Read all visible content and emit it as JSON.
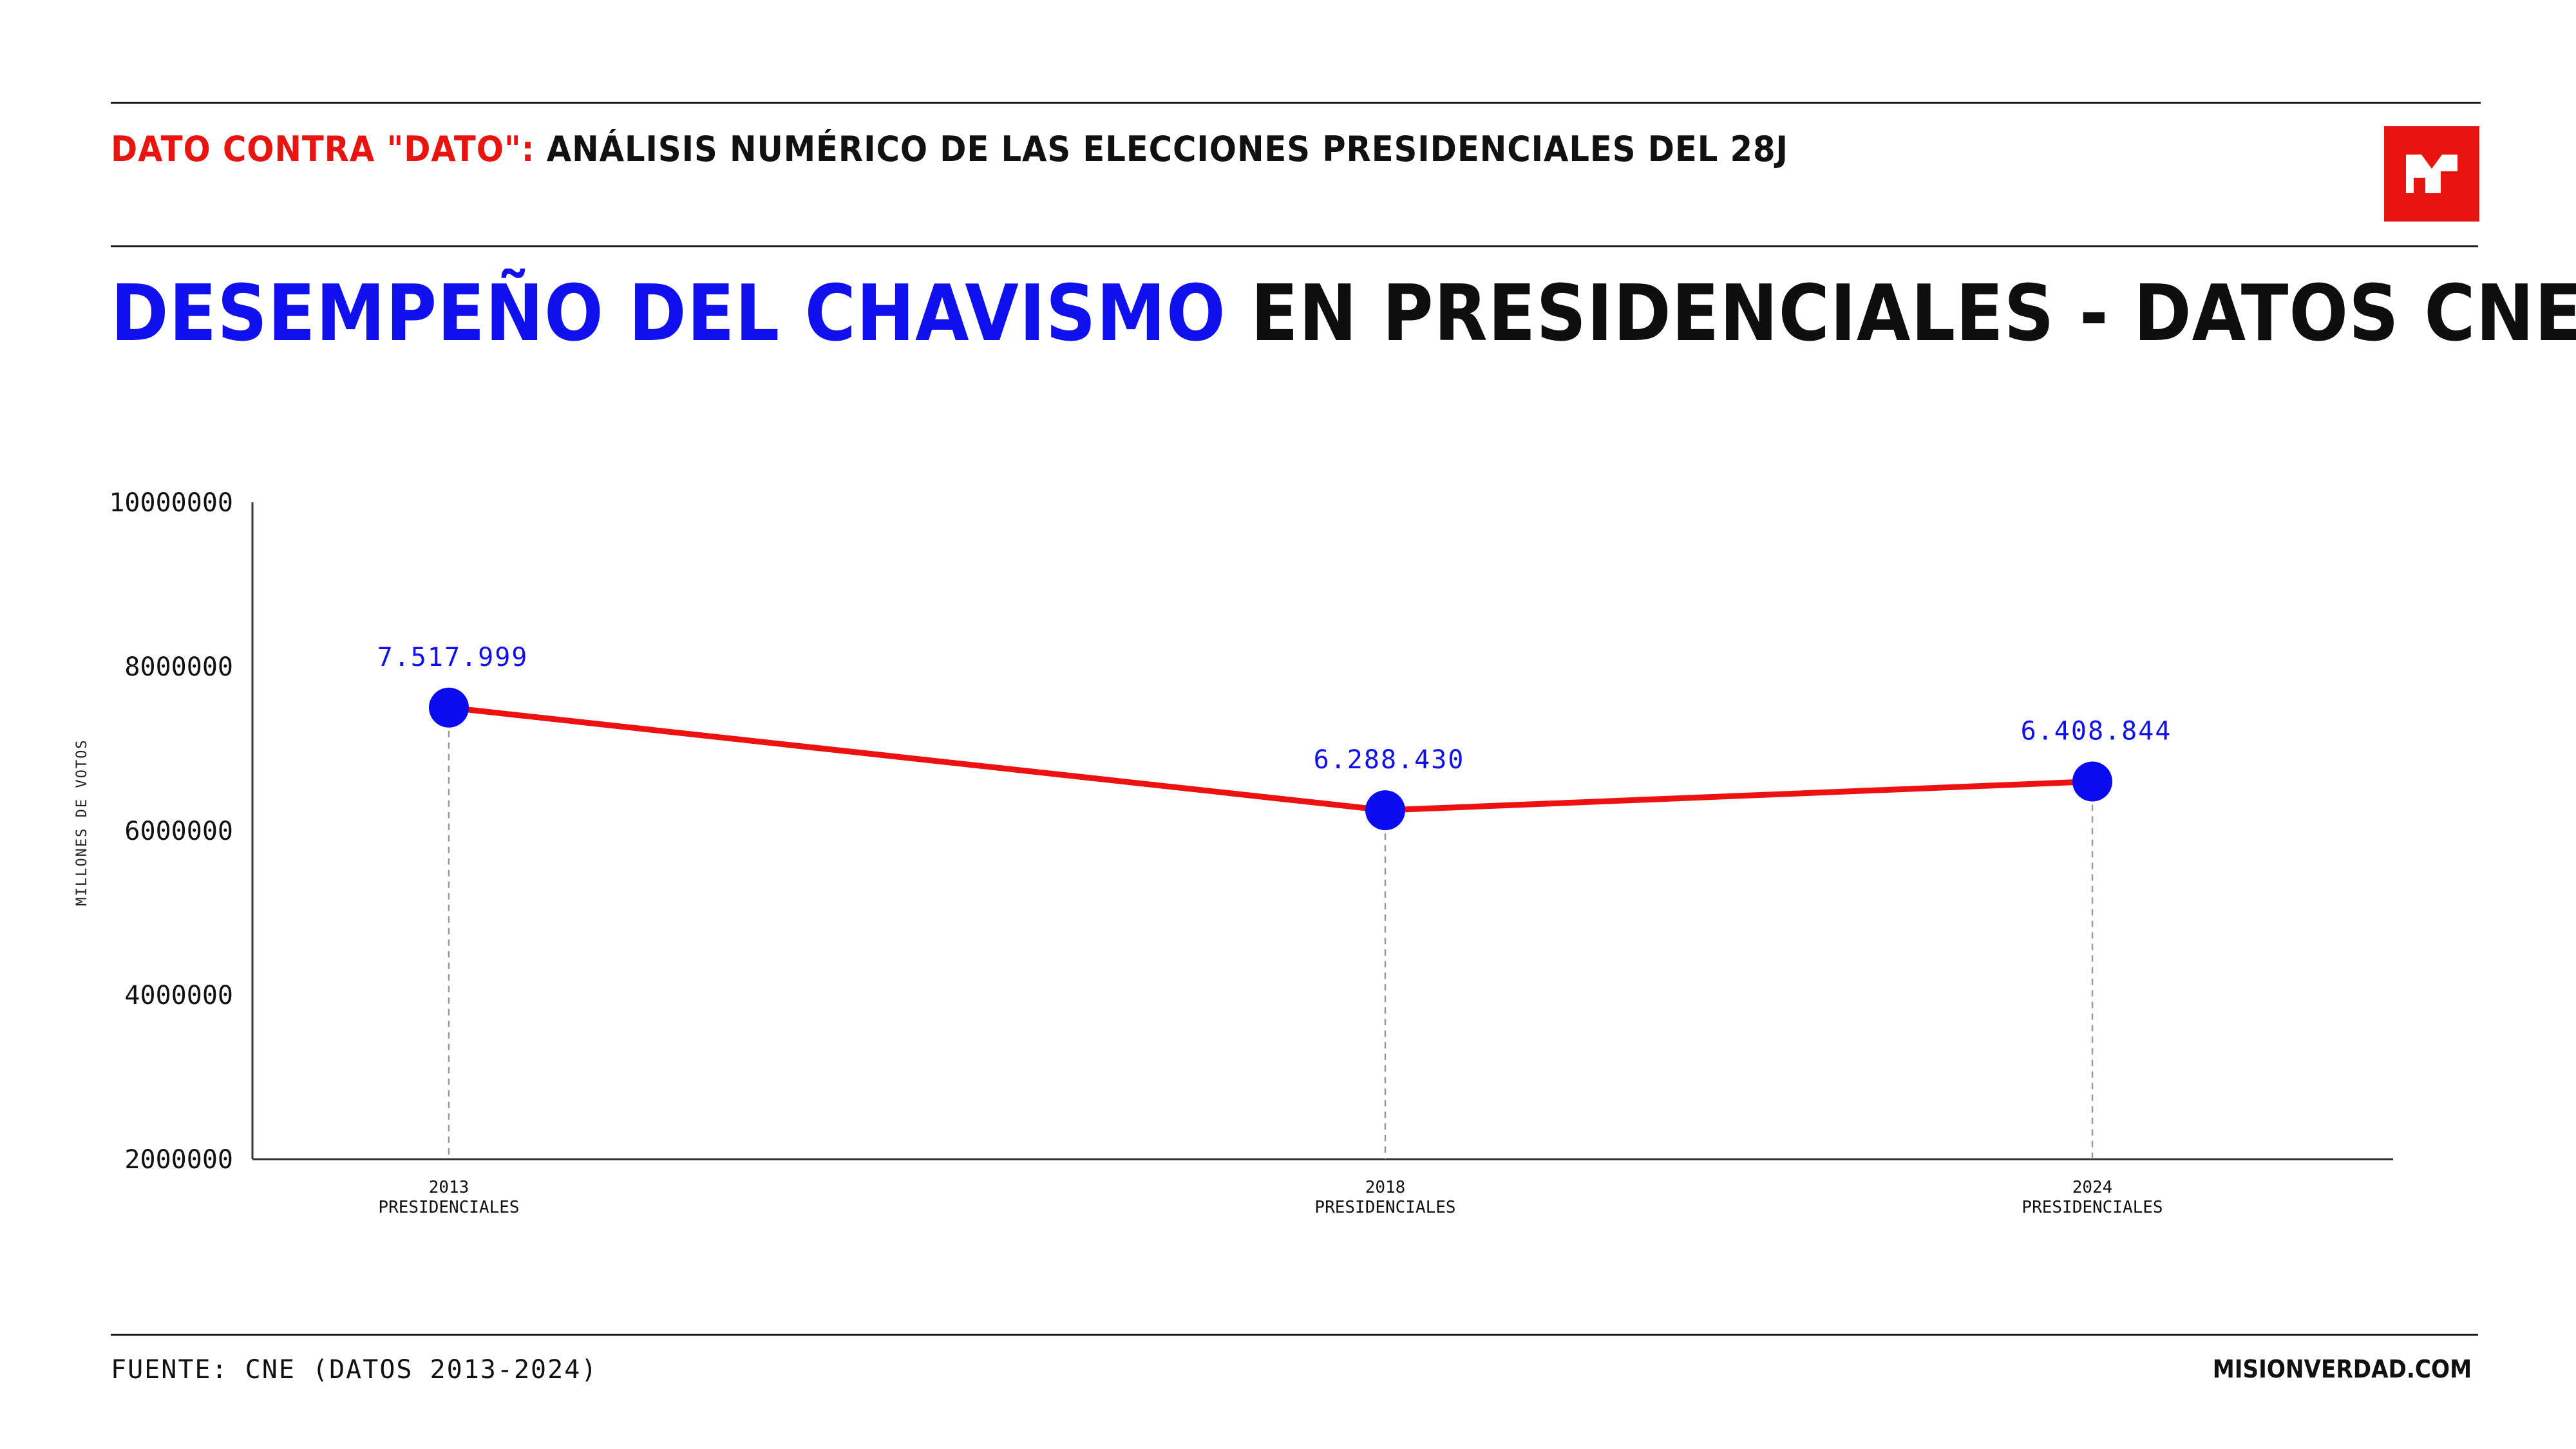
{
  "header": {
    "kicker_red": "DATO CONTRA \"DATO\":",
    "kicker_black": "ANÁLISIS NUMÉRICO DE LAS ELECCIONES PRESIDENCIALES DEL 28J",
    "title_blue": "DESEMPEÑO DEL CHAVISMO",
    "title_black": "EN PRESIDENCIALES - DATOS CNE",
    "logo_icon": "misionverdad-logo-icon"
  },
  "colors": {
    "red": "#e8140f",
    "blue": "#1010ee",
    "line": "#ee1111",
    "marker": "#0b0bf0"
  },
  "chart_data": {
    "type": "line",
    "categories": [
      [
        "2013",
        "PRESIDENCIALES"
      ],
      [
        "2018",
        "PRESIDENCIALES"
      ],
      [
        "2024",
        "PRESIDENCIALES"
      ]
    ],
    "x": [
      2013,
      2018,
      2024
    ],
    "values": [
      7517999,
      6288430,
      6408844
    ],
    "plot_values": [
      7500000,
      6250000,
      6600000
    ],
    "data_labels": [
      "7.517.999",
      "6.288.430",
      "6.408.844"
    ],
    "ylabel": "MILLONES DE VOTOS",
    "ylim": [
      2000000,
      10000000
    ],
    "yticks": [
      "2000000",
      "4000000",
      "6000000",
      "8000000",
      "10000000"
    ],
    "ytick_values": [
      2000000,
      4000000,
      6000000,
      8000000,
      10000000
    ],
    "grid": false
  },
  "footer": {
    "source": "FUENTE: CNE (DATOS 2013-2024)",
    "site": "MISIONVERDAD.COM"
  }
}
